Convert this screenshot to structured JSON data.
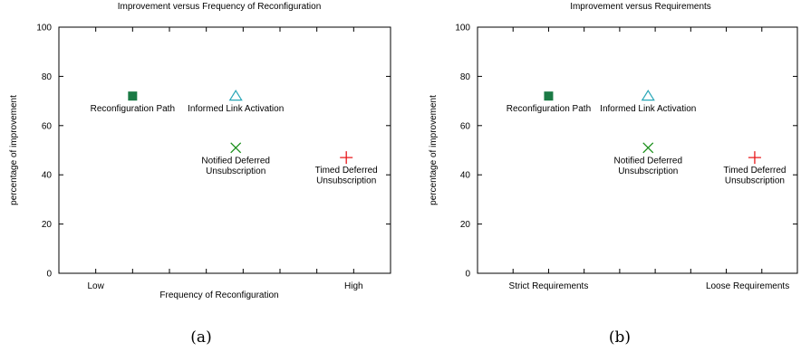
{
  "chart_data": [
    {
      "type": "scatter",
      "title": "Improvement versus Frequency of Reconfiguration",
      "xlabel": "Frequency of Reconfiguration",
      "ylabel": "percentage of improvement",
      "caption": "(a)",
      "ylim": [
        0,
        100
      ],
      "yticks": [
        0,
        20,
        40,
        60,
        80,
        100
      ],
      "xlim": [
        0,
        9
      ],
      "xtick_labels": [
        {
          "x": 1,
          "label": "Low"
        },
        {
          "x": 8,
          "label": "High"
        }
      ],
      "grid": false,
      "series": [
        {
          "label_lines": [
            "Reconfiguration Path"
          ],
          "x": 2,
          "y": 72,
          "marker": "square",
          "color": "#1b7a45"
        },
        {
          "label_lines": [
            "Informed Link Activation"
          ],
          "x": 4.8,
          "y": 72,
          "marker": "triangle",
          "color": "#2aa7b8"
        },
        {
          "label_lines": [
            "Notified Deferred",
            "Unsubscription"
          ],
          "x": 4.8,
          "y": 51,
          "marker": "x",
          "color": "#1a8f1a"
        },
        {
          "label_lines": [
            "Timed Deferred",
            "Unsubscription"
          ],
          "x": 7.8,
          "y": 47,
          "marker": "plus",
          "color": "#e8191c"
        }
      ]
    },
    {
      "type": "scatter",
      "title": "Improvement versus Requirements",
      "xlabel": "",
      "ylabel": "percentage of improvement",
      "caption": "(b)",
      "ylim": [
        0,
        100
      ],
      "yticks": [
        0,
        20,
        40,
        60,
        80,
        100
      ],
      "xlim": [
        0,
        9
      ],
      "xtick_labels": [
        {
          "x": 2,
          "label": "Strict Requirements"
        },
        {
          "x": 7.6,
          "label": "Loose Requirements"
        }
      ],
      "grid": false,
      "series": [
        {
          "label_lines": [
            "Reconfiguration Path"
          ],
          "x": 2,
          "y": 72,
          "marker": "square",
          "color": "#1b7a45"
        },
        {
          "label_lines": [
            "Informed Link Activation"
          ],
          "x": 4.8,
          "y": 72,
          "marker": "triangle",
          "color": "#2aa7b8"
        },
        {
          "label_lines": [
            "Notified Deferred",
            "Unsubscription"
          ],
          "x": 4.8,
          "y": 51,
          "marker": "x",
          "color": "#1a8f1a"
        },
        {
          "label_lines": [
            "Timed Deferred",
            "Unsubscription"
          ],
          "x": 7.8,
          "y": 47,
          "marker": "plus",
          "color": "#e8191c"
        }
      ]
    }
  ]
}
